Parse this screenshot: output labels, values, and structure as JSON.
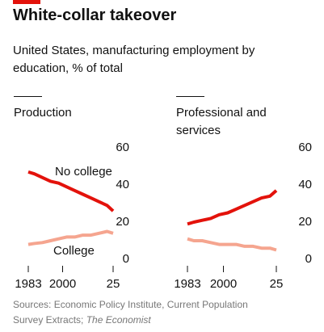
{
  "title": "White-collar takeover",
  "subtitle": "United States, manufacturing employment by education, % of total",
  "source": "Sources: Economic Policy Institute, Current Population Survey Extracts;",
  "source_credit": "The Economist",
  "chart_data": [
    {
      "type": "line",
      "title": "Production",
      "x": [
        1983,
        1986,
        1990,
        1994,
        1998,
        2002,
        2006,
        2010,
        2014,
        2018,
        2022,
        2025
      ],
      "series": [
        {
          "name": "No college",
          "color": "#e3120b",
          "values": [
            47,
            46,
            44,
            42,
            41,
            39,
            37,
            35,
            33,
            31,
            29,
            26
          ]
        },
        {
          "name": "College",
          "color": "#f5a58f",
          "values": [
            8,
            8.5,
            9,
            10,
            11,
            12,
            12,
            13,
            13,
            14,
            15,
            14
          ]
        }
      ],
      "xlim": [
        1983,
        2025
      ],
      "xticks": [
        1983,
        2000,
        {
          "value": 2025,
          "label": "25"
        }
      ],
      "ylim": [
        0,
        60
      ],
      "yticks": [
        0,
        20,
        40,
        60
      ],
      "grid": false
    },
    {
      "type": "line",
      "title": "Professional and services",
      "x": [
        1983,
        1986,
        1990,
        1994,
        1998,
        2002,
        2006,
        2010,
        2014,
        2018,
        2022,
        2025
      ],
      "series": [
        {
          "color": "#e3120b",
          "values": [
            19,
            20,
            21,
            22,
            24,
            25,
            27,
            29,
            31,
            33,
            34,
            37
          ]
        },
        {
          "color": "#f5a58f",
          "values": [
            11,
            10,
            10,
            9,
            8,
            8,
            8,
            7,
            7,
            6,
            6,
            5
          ]
        }
      ],
      "xlim": [
        1983,
        2025
      ],
      "xticks": [
        1983,
        2000,
        {
          "value": 2025,
          "label": "25"
        }
      ],
      "ylim": [
        0,
        60
      ],
      "yticks": [
        0,
        20,
        40,
        60
      ],
      "grid": false
    }
  ]
}
